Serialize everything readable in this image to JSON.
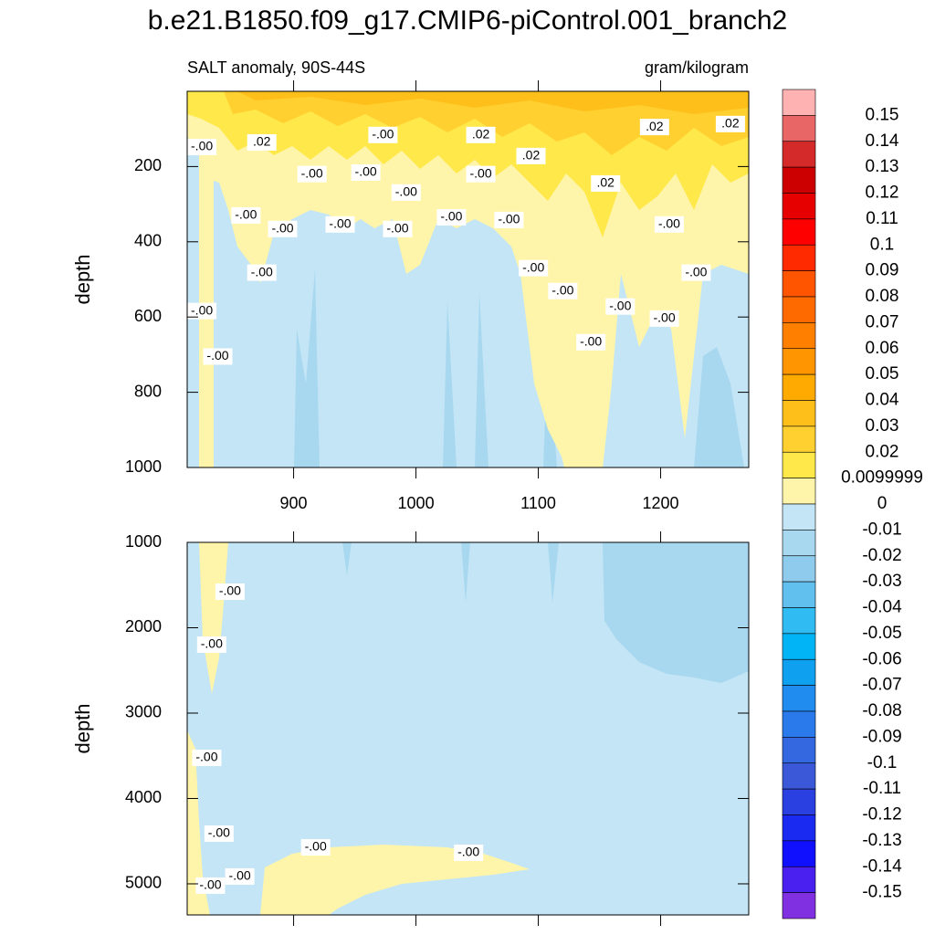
{
  "chart_data": {
    "type": "contour",
    "title": "b.e21.B1850.f09_g17.CMIP6-piControl.001_branch2",
    "subtitle_left": "SALT anomaly, 90S-44S",
    "subtitle_right": "gram/kilogram",
    "xlim": [
      813,
      1272
    ],
    "xticks": [
      900,
      1000,
      1100,
      1200
    ],
    "panels": [
      {
        "ylabel": "depth",
        "ylim": [
          0,
          1000
        ],
        "yticks": [
          200,
          400,
          600,
          800,
          1000
        ],
        "annotations": [
          {
            "text": "-.00",
            "x": 825,
            "depth": 148
          },
          {
            "text": ".02",
            "x": 874,
            "depth": 136
          },
          {
            "text": "-.00",
            "x": 973,
            "depth": 116
          },
          {
            "text": ".02",
            "x": 1053,
            "depth": 116
          },
          {
            "text": ".02",
            "x": 1094,
            "depth": 172
          },
          {
            "text": ".02",
            "x": 1195,
            "depth": 95
          },
          {
            "text": ".02",
            "x": 1257,
            "depth": 87
          },
          {
            "text": "-.00",
            "x": 915,
            "depth": 220
          },
          {
            "text": "-.00",
            "x": 959,
            "depth": 216
          },
          {
            "text": "-.00",
            "x": 992,
            "depth": 269
          },
          {
            "text": "-.00",
            "x": 1053,
            "depth": 220
          },
          {
            "text": ".02",
            "x": 1155,
            "depth": 245
          },
          {
            "text": "-.00",
            "x": 861,
            "depth": 330
          },
          {
            "text": "-.00",
            "x": 891,
            "depth": 366
          },
          {
            "text": "-.00",
            "x": 938,
            "depth": 354
          },
          {
            "text": "-.00",
            "x": 985,
            "depth": 366
          },
          {
            "text": "-.00",
            "x": 1029,
            "depth": 335
          },
          {
            "text": "-.00",
            "x": 1076,
            "depth": 342
          },
          {
            "text": "-.00",
            "x": 874,
            "depth": 482
          },
          {
            "text": "-.00",
            "x": 825,
            "depth": 584
          },
          {
            "text": "-.00",
            "x": 838,
            "depth": 705
          },
          {
            "text": "-.00",
            "x": 1096,
            "depth": 470
          },
          {
            "text": "-.00",
            "x": 1120,
            "depth": 531
          },
          {
            "text": "-.00",
            "x": 1167,
            "depth": 572
          },
          {
            "text": "-.00",
            "x": 1143,
            "depth": 667
          },
          {
            "text": "-.00",
            "x": 1203,
            "depth": 604
          },
          {
            "text": "-.00",
            "x": 1207,
            "depth": 354
          },
          {
            "text": "-.00",
            "x": 1229,
            "depth": 482
          }
        ]
      },
      {
        "ylabel": "depth",
        "ylim": [
          1000,
          5364
        ],
        "yticks": [
          1000,
          2000,
          3000,
          4000,
          5000
        ],
        "annotations": [
          {
            "text": "-.00",
            "x": 848,
            "depth": 1578
          },
          {
            "text": "-.00",
            "x": 833,
            "depth": 2198
          },
          {
            "text": "-.00",
            "x": 829,
            "depth": 3524
          },
          {
            "text": "-.00",
            "x": 839,
            "depth": 4412
          },
          {
            "text": "-.00",
            "x": 856,
            "depth": 4914
          },
          {
            "text": "-.00",
            "x": 832,
            "depth": 5021
          },
          {
            "text": "-.00",
            "x": 918,
            "depth": 4572
          },
          {
            "text": "-.00",
            "x": 1043,
            "depth": 4636
          }
        ]
      }
    ],
    "colorbar": {
      "levels": [
        0.15,
        0.14,
        0.13,
        0.12,
        0.11,
        0.1,
        0.09,
        0.08,
        0.07,
        0.06,
        0.05,
        0.04,
        0.03,
        0.02,
        0.0099999,
        0,
        -0.01,
        -0.02,
        -0.03,
        -0.04,
        -0.05,
        -0.06,
        -0.07,
        -0.08,
        -0.09,
        -0.1,
        -0.11,
        -0.12,
        -0.13,
        -0.14,
        -0.15
      ],
      "colors": [
        "#ffb2b2",
        "#e86666",
        "#d42a2a",
        "#cc0000",
        "#e60000",
        "#ff0000",
        "#ff2a00",
        "#ff5500",
        "#ff6a00",
        "#ff8000",
        "#ff9500",
        "#ffaa00",
        "#ffbf1a",
        "#ffd030",
        "#ffe84a",
        "#fff5aa",
        "#c3e5f5",
        "#a8d8ef",
        "#8ecbec",
        "#62c0ee",
        "#30bcf2",
        "#00b4f5",
        "#10a0f0",
        "#208cf0",
        "#2a7aec",
        "#3368e0",
        "#3a58d8",
        "#2a40e0",
        "#1a2af0",
        "#1010ff",
        "#4a20f0",
        "#8030e0"
      ]
    }
  }
}
